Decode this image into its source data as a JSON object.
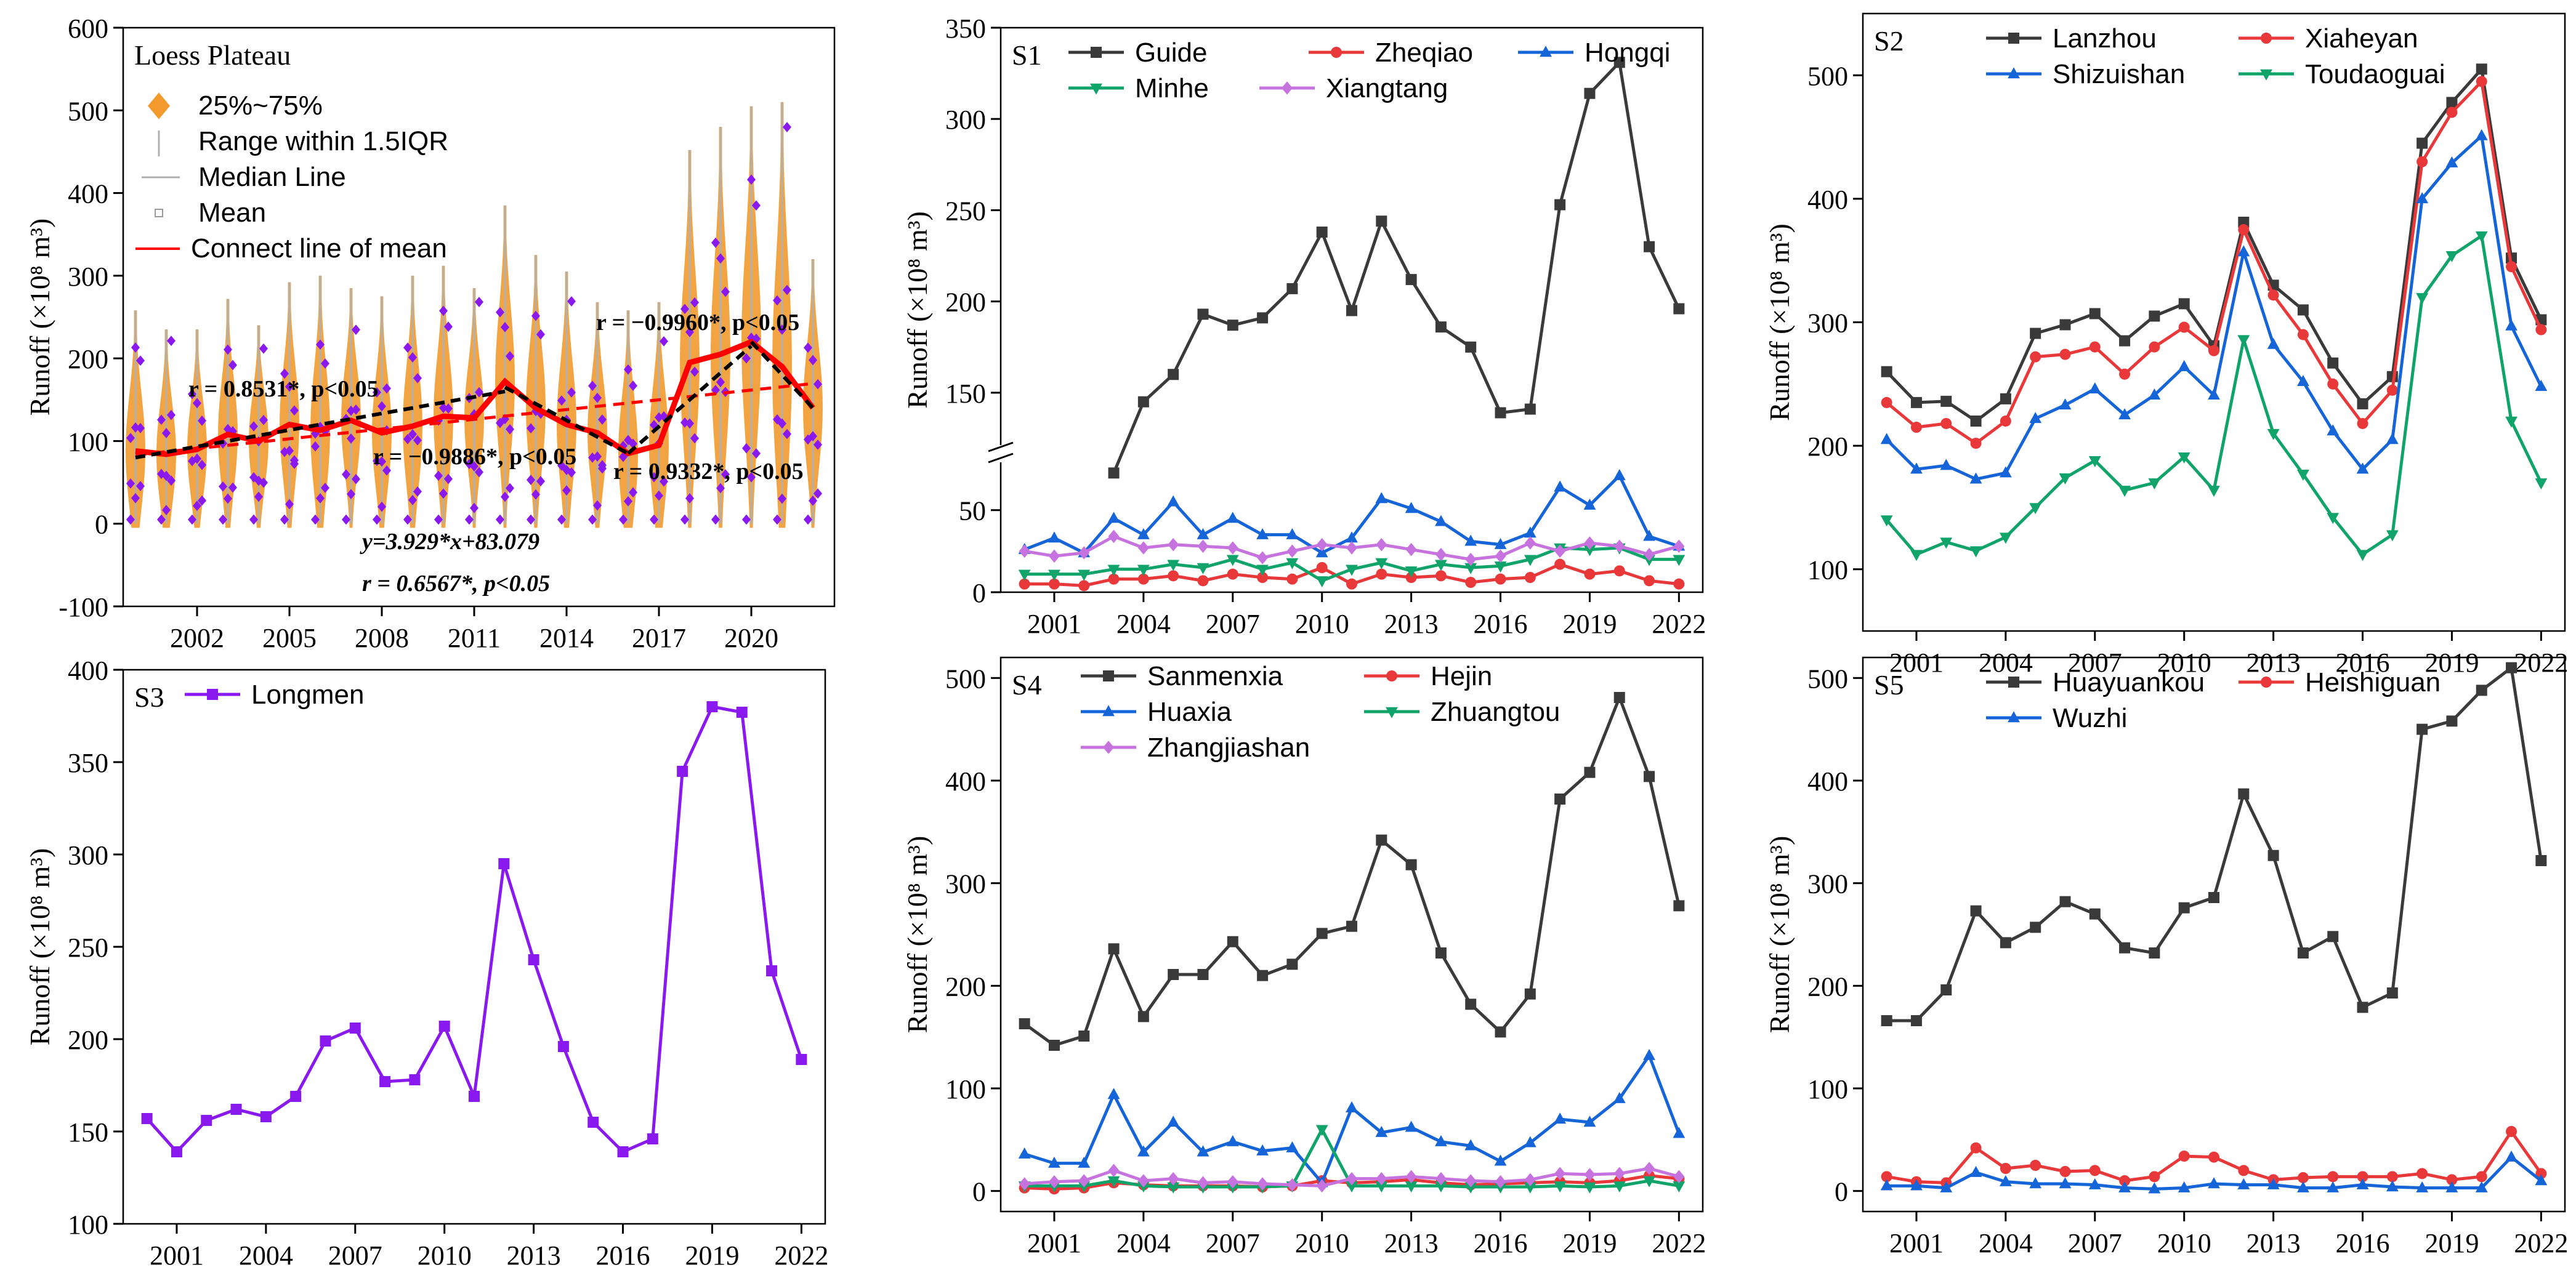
{
  "figure": {
    "panels": [
      {
        "id": "LP",
        "label": "Loess Plateau"
      },
      {
        "id": "S1",
        "label": "S1"
      },
      {
        "id": "S2",
        "label": "S2"
      },
      {
        "id": "S3",
        "label": "S3"
      },
      {
        "id": "S4",
        "label": "S4"
      },
      {
        "id": "S5",
        "label": "S5"
      }
    ],
    "ylabel": "Runoff (×10⁸ m³)"
  },
  "colors": {
    "black": "#3a3a3a",
    "red": "#e8383a",
    "blue": "#1565d8",
    "green": "#10a36a",
    "violet": "#c773df",
    "purple": "#8a19f0",
    "orange": "#f29a2e",
    "grey": "#b0b0b0"
  },
  "chart_data": [
    {
      "id": "LP",
      "type": "violin",
      "title": "Loess Plateau",
      "ylabel": "Runoff (×10⁸ m³)",
      "ylim": [
        -100,
        600
      ],
      "yticks": [
        -100,
        0,
        100,
        200,
        300,
        400,
        500,
        600
      ],
      "xticks": [
        2002,
        2005,
        2008,
        2011,
        2014,
        2017,
        2020
      ],
      "x": [
        2000,
        2001,
        2002,
        2003,
        2004,
        2005,
        2006,
        2007,
        2008,
        2009,
        2010,
        2011,
        2012,
        2013,
        2014,
        2015,
        2016,
        2017,
        2018,
        2019,
        2020,
        2021,
        2022
      ],
      "mean": [
        88,
        84,
        90,
        108,
        100,
        120,
        113,
        125,
        110,
        118,
        130,
        128,
        172,
        140,
        120,
        110,
        85,
        95,
        195,
        205,
        220,
        190,
        140
      ],
      "range_max": [
        258,
        235,
        235,
        272,
        240,
        292,
        300,
        285,
        275,
        300,
        312,
        285,
        385,
        325,
        305,
        268,
        258,
        268,
        452,
        480,
        505,
        510,
        320
      ],
      "legend": [
        "25%~75%",
        "Range within 1.5IQR",
        "Median Line",
        "Mean",
        "Connect line of mean"
      ],
      "annotations": [
        {
          "text": "r = 0.8531*, p<0.05"
        },
        {
          "text": "r = −0.9886*, p<0.05"
        },
        {
          "text": "r = 0.9332*, p<0.05"
        },
        {
          "text": "r = −0.9960*, p<0.05"
        },
        {
          "text": "y=3.929*x+83.079"
        },
        {
          "text": "r = 0.6567*, p<0.05"
        }
      ]
    },
    {
      "id": "S1",
      "type": "line",
      "ylabel": "Runoff (×10⁸ m³)",
      "yticks": [
        0,
        50,
        150,
        200,
        250,
        300,
        350
      ],
      "axis_break": [
        75,
        125
      ],
      "xticks": [
        2001,
        2004,
        2007,
        2010,
        2013,
        2016,
        2019,
        2022
      ],
      "series": [
        {
          "name": "Guide",
          "color": "black",
          "x": [
            2003,
            2004,
            2005,
            2006,
            2007,
            2008,
            2009,
            2010,
            2011,
            2012,
            2013,
            2014,
            2015,
            2016,
            2017,
            2018,
            2019,
            2020,
            2021,
            2022
          ],
          "values": [
            106,
            145,
            160,
            193,
            187,
            191,
            207,
            238,
            195,
            244,
            212,
            186,
            175,
            139,
            141,
            253,
            314,
            331,
            230,
            196
          ]
        },
        {
          "name": "Zheqiao",
          "color": "red",
          "x": [
            2000,
            2001,
            2002,
            2003,
            2004,
            2005,
            2006,
            2007,
            2008,
            2009,
            2010,
            2011,
            2012,
            2013,
            2014,
            2015,
            2016,
            2017,
            2018,
            2019,
            2020,
            2021,
            2022
          ],
          "values": [
            5,
            5,
            4,
            8,
            8,
            10,
            7,
            11,
            9,
            8,
            15,
            5,
            11,
            9,
            10,
            6,
            8,
            9,
            17,
            11,
            13,
            7,
            5
          ]
        },
        {
          "name": "Hongqi",
          "color": "blue",
          "x": [
            2000,
            2001,
            2002,
            2003,
            2004,
            2005,
            2006,
            2007,
            2008,
            2009,
            2010,
            2011,
            2012,
            2013,
            2014,
            2015,
            2016,
            2017,
            2018,
            2019,
            2020,
            2021,
            2022
          ],
          "values": [
            26,
            33,
            24,
            45,
            35,
            55,
            35,
            45,
            35,
            35,
            24,
            33,
            57,
            51,
            43,
            31,
            29,
            36,
            64,
            53,
            71,
            34,
            28
          ]
        },
        {
          "name": "Minhe",
          "color": "green",
          "x": [
            2000,
            2001,
            2002,
            2003,
            2004,
            2005,
            2006,
            2007,
            2008,
            2009,
            2010,
            2011,
            2012,
            2013,
            2014,
            2015,
            2016,
            2017,
            2018,
            2019,
            2020,
            2021,
            2022
          ],
          "values": [
            11,
            11,
            11,
            14,
            14,
            17,
            15,
            20,
            14,
            18,
            7,
            14,
            18,
            13,
            17,
            15,
            16,
            20,
            27,
            26,
            27,
            20,
            20
          ]
        },
        {
          "name": "Xiangtang",
          "color": "violet",
          "x": [
            2000,
            2001,
            2002,
            2003,
            2004,
            2005,
            2006,
            2007,
            2008,
            2009,
            2010,
            2011,
            2012,
            2013,
            2014,
            2015,
            2016,
            2017,
            2018,
            2019,
            2020,
            2021,
            2022
          ],
          "values": [
            25,
            22,
            24,
            34,
            27,
            29,
            28,
            27,
            21,
            25,
            29,
            27,
            29,
            26,
            23,
            20,
            22,
            30,
            25,
            30,
            28,
            23,
            28
          ]
        }
      ]
    },
    {
      "id": "S2",
      "type": "line",
      "ylabel": "Runoff (×10⁸ m³)",
      "ylim": [
        50,
        550
      ],
      "yticks": [
        100,
        200,
        300,
        400,
        500
      ],
      "xticks": [
        2001,
        2004,
        2007,
        2010,
        2013,
        2016,
        2019,
        2022
      ],
      "x": [
        2000,
        2001,
        2002,
        2003,
        2004,
        2005,
        2006,
        2007,
        2008,
        2009,
        2010,
        2011,
        2012,
        2013,
        2014,
        2015,
        2016,
        2017,
        2018,
        2019,
        2020,
        2021,
        2022
      ],
      "series": [
        {
          "name": "Lanzhou",
          "color": "black",
          "values": [
            260,
            235,
            236,
            220,
            238,
            291,
            298,
            307,
            285,
            305,
            315,
            281,
            381,
            330,
            310,
            267,
            234,
            256,
            445,
            478,
            505,
            352,
            302
          ]
        },
        {
          "name": "Xiaheyan",
          "color": "red",
          "values": [
            235,
            215,
            218,
            202,
            220,
            272,
            274,
            280,
            258,
            280,
            296,
            277,
            375,
            322,
            290,
            250,
            218,
            245,
            430,
            470,
            495,
            345,
            294
          ]
        },
        {
          "name": "Shizuishan",
          "color": "blue",
          "values": [
            205,
            181,
            184,
            173,
            178,
            222,
            233,
            246,
            225,
            241,
            264,
            241,
            357,
            282,
            252,
            212,
            181,
            205,
            400,
            429,
            451,
            297,
            248
          ]
        },
        {
          "name": "Toudaoguai",
          "color": "green",
          "values": [
            140,
            112,
            122,
            115,
            126,
            150,
            174,
            188,
            164,
            170,
            191,
            164,
            286,
            210,
            177,
            142,
            112,
            128,
            320,
            354,
            370,
            220,
            170
          ]
        }
      ]
    },
    {
      "id": "S3",
      "type": "line",
      "ylabel": "Runoff (×10⁸ m³)",
      "ylim": [
        100,
        400
      ],
      "yticks": [
        100,
        150,
        200,
        250,
        300,
        350,
        400
      ],
      "xticks": [
        2001,
        2004,
        2007,
        2010,
        2013,
        2016,
        2019,
        2022
      ],
      "x": [
        2000,
        2001,
        2002,
        2003,
        2004,
        2005,
        2006,
        2007,
        2008,
        2009,
        2010,
        2011,
        2012,
        2013,
        2014,
        2015,
        2016,
        2017,
        2018,
        2019,
        2020,
        2021,
        2022
      ],
      "series": [
        {
          "name": "Longmen",
          "color": "purple",
          "values": [
            157,
            139,
            156,
            162,
            158,
            169,
            199,
            206,
            177,
            178,
            207,
            169,
            295,
            243,
            196,
            155,
            139,
            146,
            345,
            380,
            377,
            237,
            189
          ]
        }
      ]
    },
    {
      "id": "S4",
      "type": "line",
      "ylabel": "Runoff (×10⁸ m³)",
      "ylim": [
        -20,
        520
      ],
      "yticks": [
        0,
        100,
        200,
        300,
        400,
        500
      ],
      "xticks": [
        2001,
        2004,
        2007,
        2010,
        2013,
        2016,
        2019,
        2022
      ],
      "x": [
        2000,
        2001,
        2002,
        2003,
        2004,
        2005,
        2006,
        2007,
        2008,
        2009,
        2010,
        2011,
        2012,
        2013,
        2014,
        2015,
        2016,
        2017,
        2018,
        2019,
        2020,
        2021,
        2022
      ],
      "series": [
        {
          "name": "Sanmenxia",
          "color": "black",
          "values": [
            163,
            142,
            151,
            236,
            170,
            211,
            211,
            243,
            210,
            221,
            251,
            258,
            342,
            318,
            232,
            182,
            155,
            192,
            382,
            408,
            481,
            404,
            278
          ]
        },
        {
          "name": "Hejin",
          "color": "red",
          "values": [
            3,
            2,
            3,
            8,
            6,
            5,
            5,
            5,
            4,
            5,
            10,
            8,
            9,
            11,
            8,
            6,
            7,
            8,
            9,
            8,
            10,
            15,
            12
          ]
        },
        {
          "name": "Huaxia",
          "color": "blue",
          "values": [
            36,
            27,
            27,
            94,
            38,
            67,
            38,
            48,
            39,
            42,
            8,
            81,
            57,
            62,
            48,
            44,
            29,
            47,
            70,
            67,
            90,
            132,
            56
          ]
        },
        {
          "name": "Zhuangtou",
          "color": "green",
          "values": [
            5,
            5,
            5,
            10,
            5,
            4,
            4,
            4,
            4,
            5,
            60,
            5,
            5,
            5,
            5,
            4,
            4,
            4,
            5,
            4,
            5,
            10,
            5
          ]
        },
        {
          "name": "Zhangjiashan",
          "color": "violet",
          "values": [
            7,
            9,
            10,
            20,
            10,
            12,
            8,
            9,
            7,
            6,
            5,
            12,
            12,
            14,
            12,
            10,
            9,
            11,
            17,
            16,
            17,
            22,
            14
          ]
        }
      ]
    },
    {
      "id": "S5",
      "type": "line",
      "ylabel": "Runoff (×10⁸ m³)",
      "ylim": [
        -20,
        520
      ],
      "yticks": [
        0,
        100,
        200,
        300,
        400,
        500
      ],
      "xticks": [
        2001,
        2004,
        2007,
        2010,
        2013,
        2016,
        2019,
        2022
      ],
      "x": [
        2000,
        2001,
        2002,
        2003,
        2004,
        2005,
        2006,
        2007,
        2008,
        2009,
        2010,
        2011,
        2012,
        2013,
        2014,
        2015,
        2016,
        2017,
        2018,
        2019,
        2020,
        2021,
        2022
      ],
      "series": [
        {
          "name": "Huayuankou",
          "color": "black",
          "values": [
            166,
            166,
            196,
            273,
            242,
            257,
            282,
            270,
            237,
            232,
            276,
            286,
            387,
            327,
            232,
            248,
            179,
            193,
            450,
            458,
            488,
            510,
            322
          ]
        },
        {
          "name": "Heishiguan",
          "color": "red",
          "values": [
            14,
            9,
            8,
            42,
            22,
            25,
            19,
            20,
            10,
            14,
            34,
            33,
            20,
            11,
            13,
            14,
            14,
            14,
            17,
            11,
            14,
            58,
            17
          ]
        },
        {
          "name": "Wuzhi",
          "color": "blue",
          "values": [
            5,
            5,
            3,
            18,
            9,
            7,
            7,
            6,
            3,
            2,
            3,
            7,
            6,
            6,
            3,
            3,
            6,
            4,
            3,
            3,
            3,
            33,
            10
          ]
        }
      ]
    }
  ]
}
